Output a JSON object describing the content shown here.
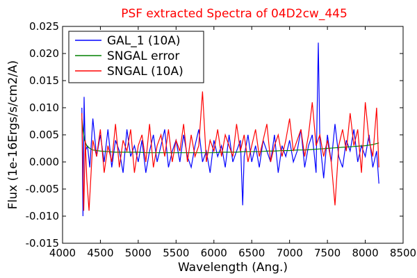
{
  "chart_data": {
    "type": "line",
    "title": "PSF extracted Spectra of 04D2cw_445",
    "title_color": "#ff0000",
    "xlabel": "Wavelength (Ang.)",
    "ylabel": "Flux (1e-16Ergs/s/cm2/A)",
    "xlim": [
      4000,
      8500
    ],
    "ylim": [
      -0.015,
      0.025
    ],
    "xticks": [
      "4000",
      "4500",
      "5000",
      "5500",
      "6000",
      "6500",
      "7000",
      "7500",
      "8000",
      "8500"
    ],
    "yticks": [
      "-0.015",
      "-0.010",
      "-0.005",
      "0.000",
      "0.005",
      "0.010",
      "0.015",
      "0.020",
      "0.025"
    ],
    "grid": false,
    "legend_position": "upper-left",
    "series": [
      {
        "name": "GAL_1 (10A)",
        "color": "#0000ff",
        "x": [
          4255,
          4270,
          4285,
          4300,
          4330,
          4360,
          4400,
          4450,
          4500,
          4550,
          4600,
          4650,
          4700,
          4750,
          4800,
          4850,
          4900,
          4950,
          5000,
          5050,
          5100,
          5150,
          5200,
          5250,
          5300,
          5350,
          5400,
          5450,
          5500,
          5550,
          5600,
          5650,
          5700,
          5750,
          5800,
          5850,
          5900,
          5950,
          6000,
          6050,
          6100,
          6150,
          6200,
          6250,
          6300,
          6350,
          6380,
          6400,
          6450,
          6500,
          6550,
          6600,
          6650,
          6700,
          6750,
          6800,
          6850,
          6900,
          6950,
          7000,
          7050,
          7100,
          7150,
          7200,
          7250,
          7300,
          7350,
          7380,
          7400,
          7450,
          7500,
          7550,
          7600,
          7650,
          7700,
          7750,
          7800,
          7850,
          7900,
          7950,
          8000,
          8050,
          8100,
          8150,
          8180
        ],
        "y": [
          0.01,
          -0.01,
          0.012,
          0.002,
          0.003,
          -0.001,
          0.008,
          0.001,
          0.005,
          0.0,
          0.006,
          -0.001,
          0.004,
          0.002,
          -0.002,
          0.006,
          0.001,
          0.003,
          0.0,
          0.004,
          -0.002,
          0.002,
          0.005,
          0.0,
          0.003,
          0.006,
          -0.001,
          0.002,
          0.004,
          0.0,
          0.005,
          0.001,
          -0.001,
          0.003,
          0.006,
          0.0,
          0.002,
          -0.002,
          0.004,
          0.001,
          0.003,
          -0.001,
          0.005,
          0.0,
          0.002,
          0.004,
          -0.008,
          0.001,
          0.005,
          0.0,
          0.003,
          -0.001,
          0.004,
          0.002,
          0.0,
          0.005,
          -0.002,
          0.003,
          0.001,
          0.004,
          0.0,
          0.002,
          0.006,
          -0.001,
          0.003,
          0.005,
          -0.002,
          0.022,
          0.004,
          -0.003,
          0.005,
          0.0,
          0.007,
          0.001,
          -0.001,
          0.004,
          0.002,
          0.006,
          0.0,
          0.003,
          0.001,
          0.005,
          -0.001,
          0.002,
          -0.004
        ]
      },
      {
        "name": "SNGAL error",
        "color": "#008000",
        "x": [
          4255,
          4270,
          4290,
          4320,
          4360,
          4400,
          4500,
          4600,
          4700,
          4800,
          4900,
          5000,
          5100,
          5200,
          5300,
          5400,
          5500,
          5600,
          5700,
          5800,
          5900,
          6000,
          6100,
          6200,
          6300,
          6400,
          6500,
          6600,
          6700,
          6800,
          6900,
          7000,
          7100,
          7200,
          7300,
          7400,
          7500,
          7600,
          7700,
          7800,
          7900,
          8000,
          8100,
          8180
        ],
        "y": [
          0.008,
          0.006,
          0.004,
          0.003,
          0.0025,
          0.0022,
          0.002,
          0.0019,
          0.0018,
          0.0018,
          0.0018,
          0.0018,
          0.0017,
          0.0017,
          0.0017,
          0.0017,
          0.0017,
          0.0017,
          0.0017,
          0.0017,
          0.0017,
          0.0017,
          0.0018,
          0.0018,
          0.0018,
          0.0019,
          0.0019,
          0.0019,
          0.002,
          0.002,
          0.0021,
          0.0021,
          0.0022,
          0.0022,
          0.0023,
          0.0024,
          0.0025,
          0.0026,
          0.0027,
          0.0028,
          0.0029,
          0.003,
          0.0032,
          0.0035
        ]
      },
      {
        "name": "SNGAL (10A)",
        "color": "#ff0000",
        "x": [
          4255,
          4280,
          4300,
          4320,
          4350,
          4400,
          4450,
          4500,
          4550,
          4600,
          4650,
          4700,
          4750,
          4800,
          4850,
          4900,
          4950,
          5000,
          5050,
          5100,
          5150,
          5200,
          5250,
          5300,
          5350,
          5400,
          5450,
          5500,
          5550,
          5600,
          5650,
          5700,
          5750,
          5800,
          5850,
          5900,
          5950,
          6000,
          6050,
          6100,
          6150,
          6200,
          6250,
          6300,
          6350,
          6400,
          6450,
          6500,
          6550,
          6600,
          6650,
          6700,
          6750,
          6800,
          6850,
          6900,
          6950,
          7000,
          7050,
          7100,
          7150,
          7200,
          7250,
          7300,
          7350,
          7400,
          7450,
          7500,
          7550,
          7600,
          7650,
          7700,
          7750,
          7800,
          7850,
          7900,
          7950,
          8000,
          8050,
          8100,
          8150,
          8180
        ],
        "y": [
          0.009,
          -0.009,
          0.004,
          -0.003,
          -0.009,
          0.004,
          0.001,
          0.006,
          -0.002,
          0.003,
          0.0,
          0.007,
          -0.001,
          0.004,
          0.002,
          0.006,
          -0.002,
          0.003,
          0.005,
          0.0,
          0.007,
          -0.001,
          0.003,
          0.005,
          0.001,
          0.006,
          0.0,
          0.004,
          0.002,
          0.007,
          0.0,
          0.005,
          0.001,
          0.003,
          0.013,
          0.0,
          0.004,
          0.002,
          0.006,
          0.001,
          0.005,
          0.003,
          0.001,
          0.007,
          0.002,
          0.005,
          0.0,
          0.003,
          0.006,
          0.001,
          0.004,
          0.007,
          0.0,
          0.003,
          0.005,
          0.001,
          0.004,
          0.008,
          0.002,
          0.004,
          0.006,
          0.001,
          0.005,
          0.011,
          0.003,
          0.005,
          0.001,
          0.004,
          0.0,
          -0.008,
          0.003,
          0.006,
          0.002,
          0.009,
          0.003,
          0.006,
          -0.002,
          0.011,
          0.004,
          0.001,
          0.01,
          -0.001
        ]
      }
    ]
  }
}
